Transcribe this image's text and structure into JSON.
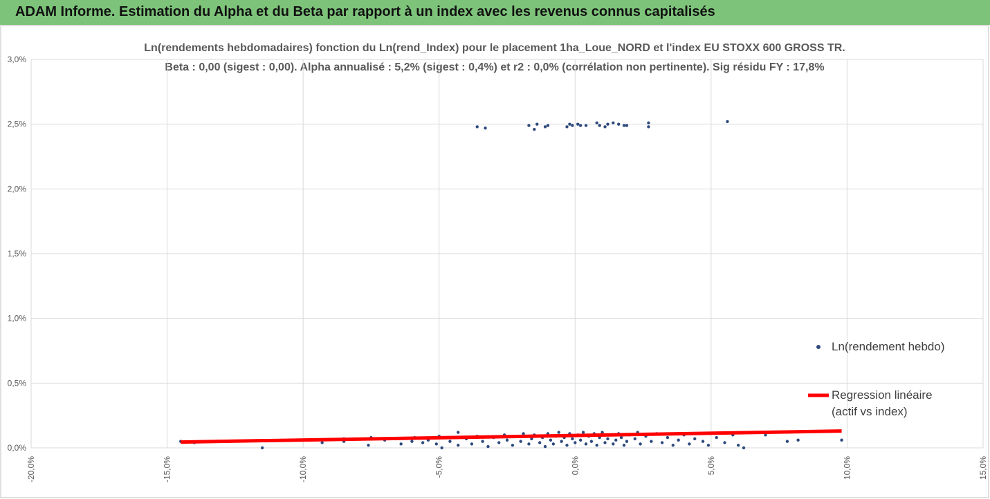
{
  "header": {
    "title": "ADAM Informe. Estimation du Alpha et du Beta par rapport à un index avec les revenus connus capitalisés"
  },
  "chart_data": {
    "type": "scatter",
    "title": "Ln(rendements hebdomadaires) fonction du Ln(rend_Index) pour le placement 1ha_Loue_NORD et l'index EU STOXX 600 GROSS TR.",
    "subtitle": "Beta : 0,00 (sigest : 0,00).  Alpha annualisé : 5,2% (sigest : 0,4%) et r2 : 0,0% (corrélation non pertinente). Sig résidu FY : 17,8%",
    "xlim": [
      -20,
      15
    ],
    "xticks": [
      {
        "value": -20,
        "label": "-20,0%"
      },
      {
        "value": -15,
        "label": "-15,0%"
      },
      {
        "value": -10,
        "label": "-10,0%"
      },
      {
        "value": -5,
        "label": "-5,0%"
      },
      {
        "value": 0,
        "label": "0,0%"
      },
      {
        "value": 5,
        "label": "5,0%"
      },
      {
        "value": 10,
        "label": "10,0%"
      },
      {
        "value": 15,
        "label": "15,0%"
      }
    ],
    "ylim": [
      0,
      3
    ],
    "yticks": [
      {
        "value": 0,
        "label": "0,0%"
      },
      {
        "value": 0.5,
        "label": "0,5%"
      },
      {
        "value": 1,
        "label": "1,0%"
      },
      {
        "value": 1.5,
        "label": "1,5%"
      },
      {
        "value": 2,
        "label": "2,0%"
      },
      {
        "value": 2.5,
        "label": "2,5%"
      },
      {
        "value": 3,
        "label": "3,0%"
      }
    ],
    "grid": true,
    "series": [
      {
        "name": "Ln(rendement hebdo)",
        "color": "#2e4a7d",
        "x": [
          -3.6,
          -3.3,
          -1.7,
          -1.5,
          -1.4,
          -1.1,
          -1.0,
          -0.3,
          -0.2,
          -0.1,
          0.1,
          0.2,
          0.4,
          0.8,
          0.9,
          1.1,
          1.2,
          1.4,
          1.6,
          1.8,
          1.9,
          2.7,
          2.7,
          5.6,
          -14.5,
          -14.0,
          -11.5,
          -10.0,
          -9.3,
          -8.5,
          -8.5,
          -7.6,
          -7.5,
          -7.0,
          -6.6,
          -6.4,
          -6.0,
          -5.9,
          -5.6,
          -5.4,
          -5.1,
          -5.0,
          -4.9,
          -4.6,
          -4.5,
          -4.3,
          -4.3,
          -4.0,
          -3.8,
          -3.6,
          -3.4,
          -3.2,
          -3.0,
          -2.8,
          -2.6,
          -2.5,
          -2.3,
          -2.2,
          -2.0,
          -1.9,
          -1.7,
          -1.6,
          -1.5,
          -1.3,
          -1.2,
          -1.1,
          -1.0,
          -0.9,
          -0.8,
          -0.7,
          -0.6,
          -0.5,
          -0.4,
          -0.3,
          -0.2,
          -0.1,
          0.0,
          0.1,
          0.2,
          0.3,
          0.4,
          0.5,
          0.6,
          0.7,
          0.8,
          0.9,
          1.0,
          1.1,
          1.2,
          1.3,
          1.4,
          1.5,
          1.6,
          1.7,
          1.8,
          1.9,
          2.0,
          2.2,
          2.3,
          2.4,
          2.6,
          2.8,
          3.0,
          3.2,
          3.4,
          3.6,
          3.8,
          4.0,
          4.2,
          4.4,
          4.7,
          4.9,
          5.2,
          5.5,
          5.8,
          6.0,
          6.2,
          7.0,
          7.8,
          8.2,
          9.8
        ],
        "values": [
          2.48,
          2.47,
          2.49,
          2.46,
          2.5,
          2.48,
          2.49,
          2.48,
          2.5,
          2.49,
          2.5,
          2.49,
          2.49,
          2.51,
          2.49,
          2.48,
          2.5,
          2.51,
          2.5,
          2.49,
          2.49,
          2.48,
          2.51,
          2.52,
          0.05,
          0.04,
          0.0,
          0.06,
          0.04,
          0.07,
          0.05,
          0.02,
          0.08,
          0.06,
          0.07,
          0.03,
          0.05,
          0.08,
          0.04,
          0.06,
          0.03,
          0.09,
          0.0,
          0.05,
          0.08,
          0.02,
          0.12,
          0.07,
          0.03,
          0.09,
          0.05,
          0.01,
          0.08,
          0.04,
          0.1,
          0.06,
          0.02,
          0.09,
          0.05,
          0.11,
          0.03,
          0.07,
          0.1,
          0.04,
          0.08,
          0.01,
          0.11,
          0.06,
          0.03,
          0.09,
          0.12,
          0.05,
          0.08,
          0.02,
          0.11,
          0.07,
          0.04,
          0.1,
          0.06,
          0.12,
          0.03,
          0.09,
          0.05,
          0.11,
          0.02,
          0.08,
          0.12,
          0.04,
          0.07,
          0.1,
          0.03,
          0.06,
          0.11,
          0.08,
          0.02,
          0.05,
          0.1,
          0.07,
          0.12,
          0.03,
          0.09,
          0.05,
          0.11,
          0.04,
          0.08,
          0.02,
          0.06,
          0.1,
          0.03,
          0.07,
          0.05,
          0.02,
          0.08,
          0.04,
          0.1,
          0.02,
          0.0,
          0.1,
          0.05,
          0.06,
          0.06
        ]
      }
    ],
    "regression": {
      "name": "Regression linéaire (actif vs index)",
      "color": "#ff0000",
      "x": [
        -14.5,
        9.8
      ],
      "values": [
        0.045,
        0.13
      ]
    }
  }
}
